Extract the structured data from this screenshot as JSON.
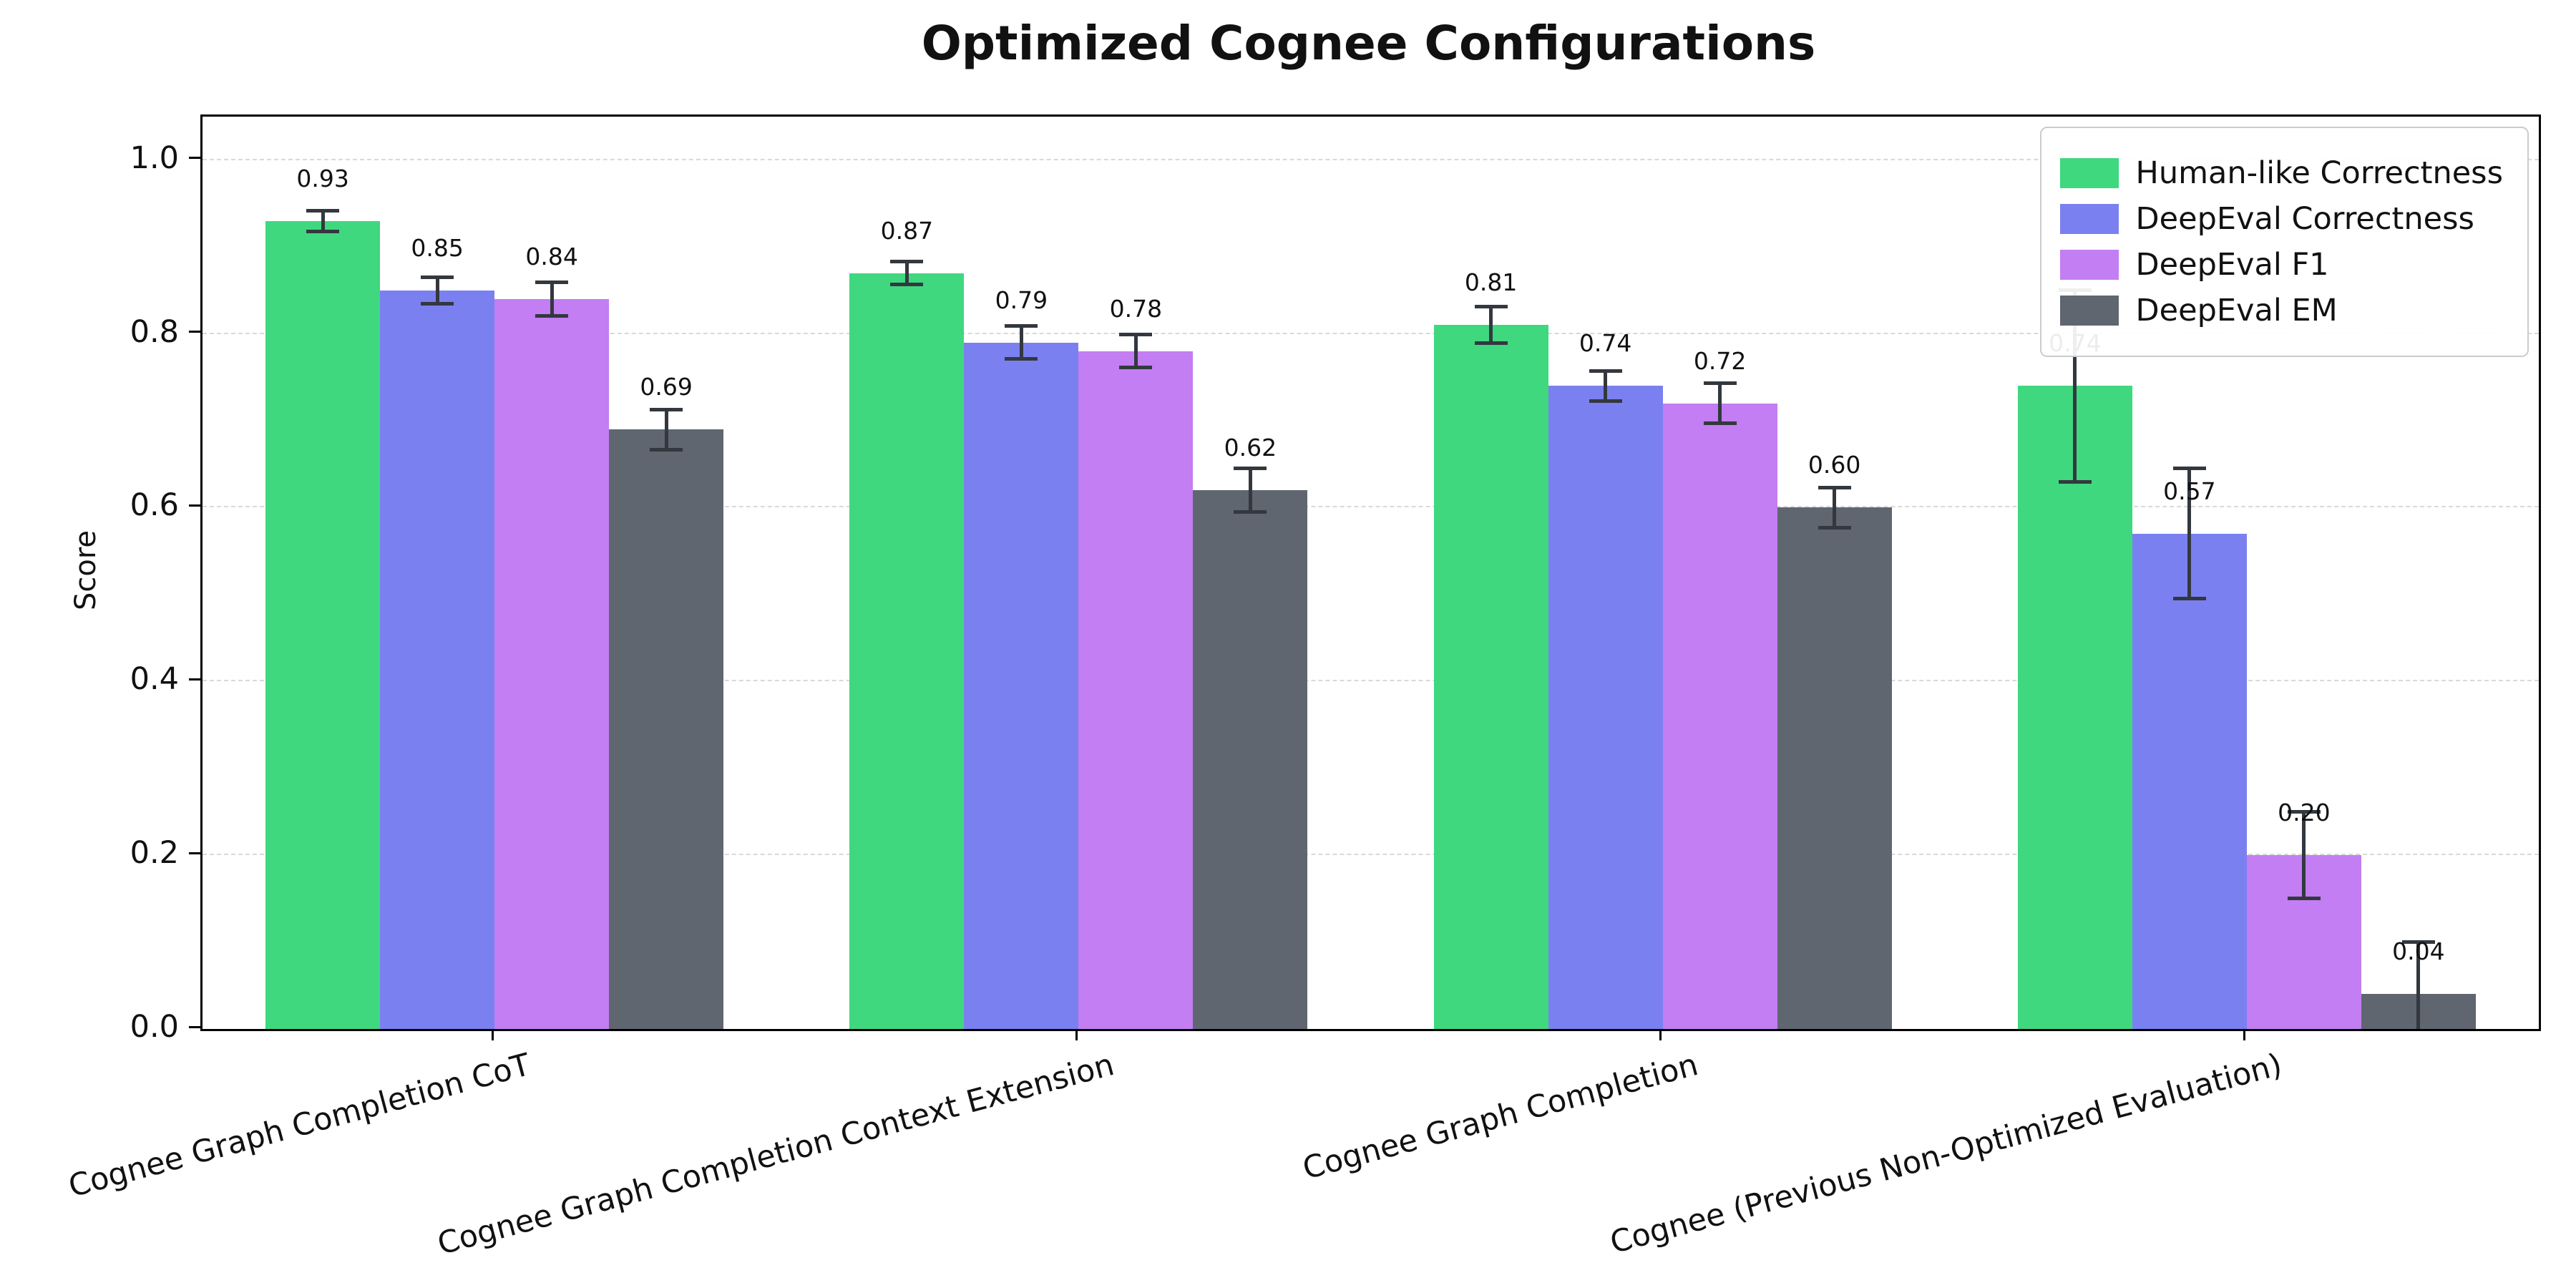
{
  "chart_data": {
    "type": "bar",
    "title": "Optimized Cognee Configurations",
    "xlabel": "",
    "ylabel": "Score",
    "ylim": [
      0,
      1.05
    ],
    "yticks": [
      0.0,
      0.2,
      0.4,
      0.6,
      0.8,
      1.0
    ],
    "grid": "horizontal-dashed",
    "legend_position": "top-right",
    "categories": [
      "Cognee Graph Completion CoT",
      "Cognee Graph Completion Context Extension",
      "Cognee Graph Completion",
      "Cognee (Previous Non-Optimized Evaluation)"
    ],
    "series": [
      {
        "name": "Human-like Correctness",
        "color": "#3fd87f",
        "values": [
          0.93,
          0.87,
          0.81,
          0.74
        ],
        "errors": [
          0.012,
          0.013,
          0.021,
          0.11
        ]
      },
      {
        "name": "DeepEval Correctness",
        "color": "#7b80f0",
        "values": [
          0.85,
          0.79,
          0.74,
          0.57
        ],
        "errors": [
          0.015,
          0.019,
          0.017,
          0.075
        ]
      },
      {
        "name": "DeepEval F1",
        "color": "#c27ef2",
        "values": [
          0.84,
          0.78,
          0.72,
          0.2
        ],
        "errors": [
          0.019,
          0.019,
          0.023,
          0.05
        ]
      },
      {
        "name": "DeepEval EM",
        "color": "#5f6670",
        "values": [
          0.69,
          0.62,
          0.6,
          0.04
        ],
        "errors": [
          0.023,
          0.025,
          0.023,
          0.06
        ]
      }
    ]
  }
}
